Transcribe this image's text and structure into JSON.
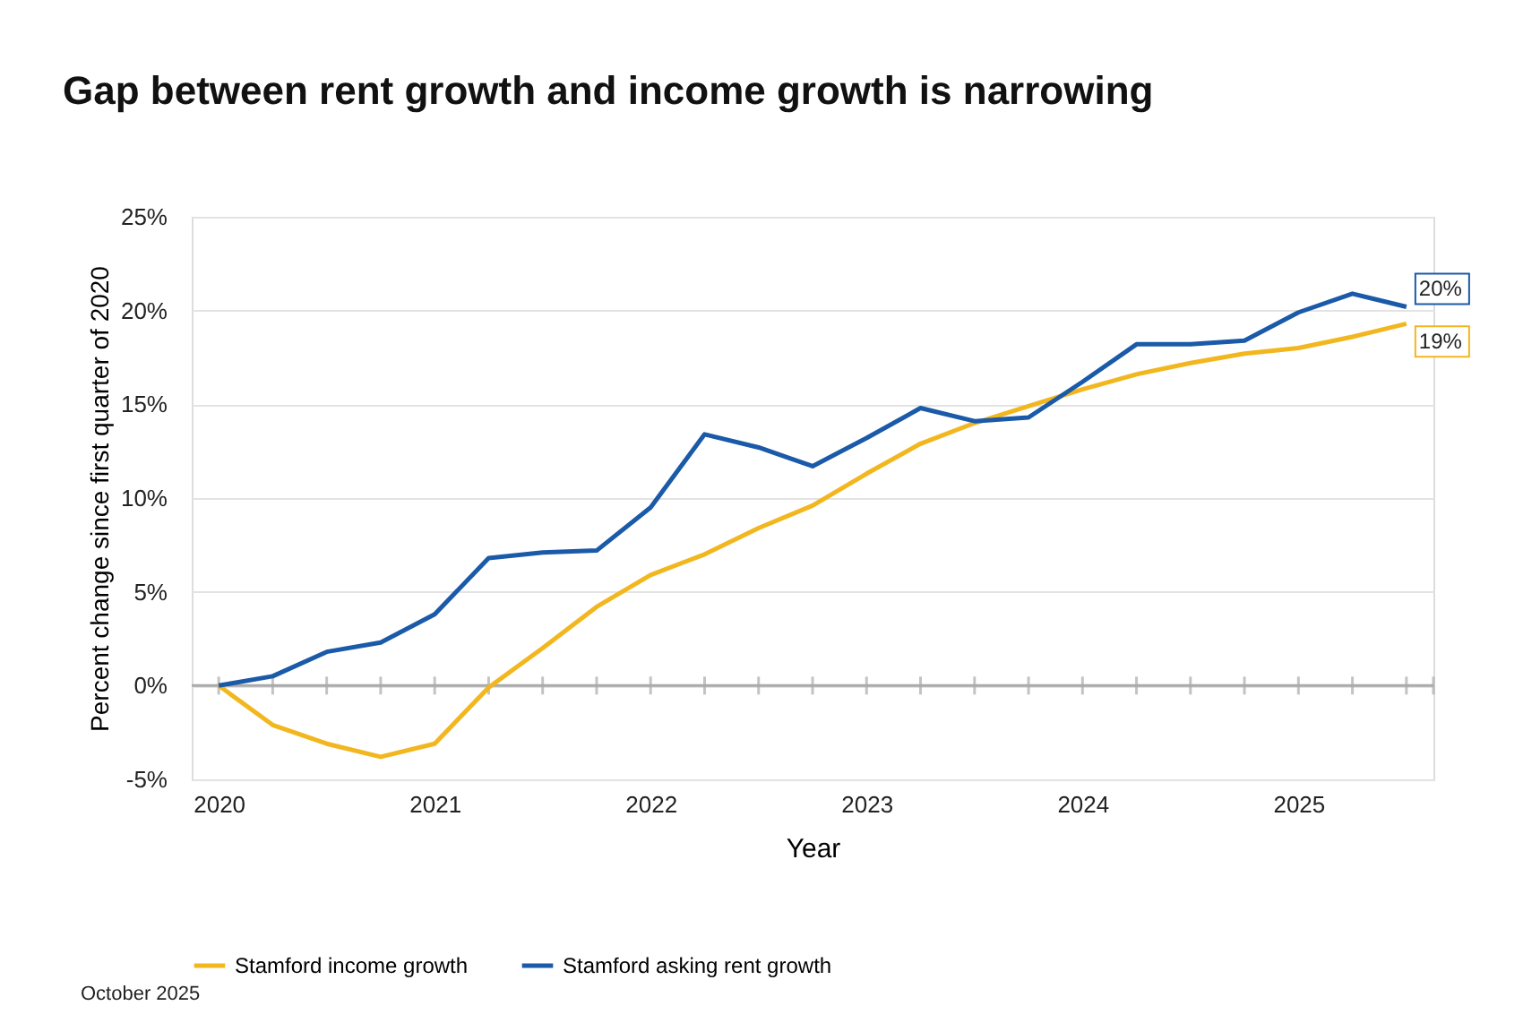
{
  "chart_data": {
    "type": "line",
    "title": "Gap between rent growth and income growth is narrowing",
    "xlabel": "Year",
    "ylabel": "Percent change since first quarter of 2020",
    "x": [
      2020,
      2020.25,
      2020.5,
      2020.75,
      2021,
      2021.25,
      2021.5,
      2021.75,
      2022,
      2022.25,
      2022.5,
      2022.75,
      2023,
      2023.25,
      2023.5,
      2023.75,
      2024,
      2024.25,
      2024.5,
      2024.75,
      2025,
      2025.25,
      2025.5
    ],
    "series": [
      {
        "name": "Stamford income growth",
        "color": "#f2b71f",
        "values": [
          0,
          -2.1,
          -3.1,
          -3.8,
          -3.1,
          -0.1,
          2.0,
          4.2,
          5.9,
          7.0,
          8.4,
          9.6,
          11.3,
          12.9,
          14.0,
          14.9,
          15.8,
          16.6,
          17.2,
          17.7,
          18.0,
          18.6,
          19.3
        ],
        "value_labels": [
          null,
          null,
          null,
          null,
          null,
          null,
          null,
          null,
          null,
          null,
          null,
          null,
          null,
          null,
          null,
          null,
          null,
          null,
          null,
          null,
          null,
          null,
          "19%"
        ]
      },
      {
        "name": "Stamford asking rent growth",
        "color": "#1a5aa8",
        "values": [
          0,
          0.5,
          1.8,
          2.3,
          3.8,
          6.8,
          7.1,
          7.2,
          9.5,
          13.4,
          12.7,
          11.7,
          13.2,
          14.8,
          14.1,
          14.3,
          16.2,
          18.2,
          18.2,
          18.4,
          19.9,
          20.9,
          20.2
        ],
        "value_labels": [
          null,
          null,
          null,
          null,
          null,
          null,
          null,
          null,
          null,
          null,
          null,
          null,
          null,
          null,
          null,
          null,
          null,
          null,
          null,
          null,
          null,
          null,
          "20%"
        ]
      }
    ],
    "xlim": [
      2019.875,
      2025.625
    ],
    "xticks": [
      2020,
      {
        "value": 2020.25,
        "label": null
      },
      {
        "value": 2020.5,
        "label": null
      },
      {
        "value": 2020.75,
        "label": null
      },
      2021,
      {
        "value": 2021.25,
        "label": null
      },
      {
        "value": 2021.5,
        "label": null
      },
      {
        "value": 2021.75,
        "label": null
      },
      2022,
      {
        "value": 2022.25,
        "label": null
      },
      {
        "value": 2022.5,
        "label": null
      },
      {
        "value": 2022.75,
        "label": null
      },
      2023,
      {
        "value": 2023.25,
        "label": null
      },
      {
        "value": 2023.5,
        "label": null
      },
      {
        "value": 2023.75,
        "label": null
      },
      2024,
      {
        "value": 2024.25,
        "label": null
      },
      {
        "value": 2024.5,
        "label": null
      },
      {
        "value": 2024.75,
        "label": null
      },
      2025,
      {
        "value": 2025.25,
        "label": null
      },
      {
        "value": 2025.5,
        "label": null
      }
    ],
    "ylim": [
      -5,
      25
    ],
    "yticks": [
      {
        "value": -5,
        "label": "-5%"
      },
      {
        "value": 0,
        "label": "0%"
      },
      {
        "value": 5,
        "label": "5%"
      },
      {
        "value": 10,
        "label": "10%"
      },
      {
        "value": 15,
        "label": "15%"
      },
      {
        "value": 20,
        "label": "20%"
      },
      {
        "value": 25,
        "label": "25%"
      }
    ],
    "grid": "y",
    "legend": "bottom",
    "marker": "none",
    "line_style": "solid",
    "annotations": [
      "October 2025"
    ]
  }
}
